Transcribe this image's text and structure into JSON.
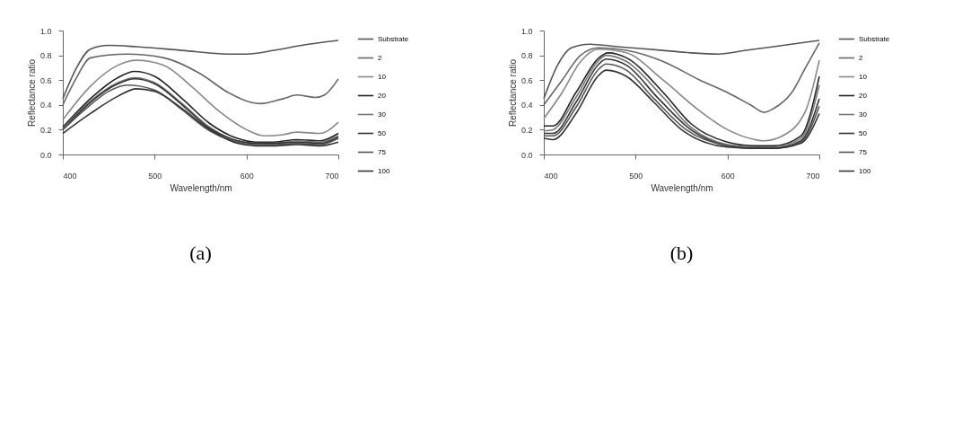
{
  "chart_data": [
    {
      "type": "line",
      "title": "(a)",
      "xlabel": "Wavelength/nm",
      "ylabel": "Reflectance ratio",
      "xlim": [
        400,
        700
      ],
      "ylim": [
        0,
        1
      ],
      "xticks": [
        400,
        500,
        600,
        700
      ],
      "yticks": [
        {
          "value": 0,
          "label": "0.0"
        },
        {
          "value": 0.2,
          "label": "0.2"
        },
        {
          "value": 0.4,
          "label": "0.4"
        },
        {
          "value": 0.6,
          "label": "0.6"
        },
        {
          "value": 0.8,
          "label": "0.8"
        },
        {
          "value": 1,
          "label": "1.0"
        }
      ],
      "legend": "right",
      "grid": false,
      "series": [
        {
          "name": "Substrate",
          "color": "#555555",
          "x": [
            400,
            415,
            430,
            450,
            480,
            530,
            580,
            600,
            630,
            660,
            700
          ],
          "values": [
            0.45,
            0.7,
            0.85,
            0.88,
            0.87,
            0.84,
            0.81,
            0.81,
            0.84,
            0.88,
            0.92
          ]
        },
        {
          "name": "2",
          "color": "#666666",
          "x": [
            400,
            415,
            430,
            470,
            510,
            550,
            580,
            605,
            615,
            640,
            655,
            675,
            685,
            700
          ],
          "values": [
            0.4,
            0.62,
            0.78,
            0.81,
            0.78,
            0.65,
            0.5,
            0.42,
            0.41,
            0.45,
            0.48,
            0.46,
            0.48,
            0.61
          ]
        },
        {
          "name": "10",
          "color": "#888888",
          "x": [
            400,
            430,
            460,
            480,
            510,
            540,
            570,
            600,
            620,
            640,
            655,
            680,
            700
          ],
          "values": [
            0.28,
            0.55,
            0.72,
            0.76,
            0.72,
            0.55,
            0.35,
            0.2,
            0.15,
            0.16,
            0.18,
            0.17,
            0.26
          ]
        },
        {
          "name": "20",
          "color": "#222222",
          "x": [
            400,
            430,
            460,
            478,
            500,
            530,
            560,
            590,
            610,
            630,
            655,
            680,
            700
          ],
          "values": [
            0.22,
            0.45,
            0.62,
            0.67,
            0.63,
            0.45,
            0.25,
            0.13,
            0.1,
            0.1,
            0.12,
            0.11,
            0.17
          ]
        },
        {
          "name": "30",
          "color": "#777777",
          "x": [
            400,
            430,
            460,
            478,
            500,
            530,
            560,
            590,
            610,
            630,
            655,
            680,
            700
          ],
          "values": [
            0.21,
            0.43,
            0.58,
            0.62,
            0.58,
            0.41,
            0.22,
            0.11,
            0.09,
            0.09,
            0.11,
            0.1,
            0.15
          ]
        },
        {
          "name": "50",
          "color": "#333333",
          "x": [
            400,
            430,
            460,
            478,
            500,
            530,
            560,
            590,
            610,
            630,
            655,
            680,
            700
          ],
          "values": [
            0.2,
            0.42,
            0.57,
            0.61,
            0.57,
            0.4,
            0.21,
            0.11,
            0.09,
            0.09,
            0.1,
            0.09,
            0.14
          ]
        },
        {
          "name": "75",
          "color": "#555555",
          "x": [
            400,
            430,
            450,
            470,
            500,
            530,
            560,
            590,
            610,
            630,
            655,
            680,
            700
          ],
          "values": [
            0.2,
            0.4,
            0.51,
            0.56,
            0.52,
            0.36,
            0.19,
            0.1,
            0.08,
            0.08,
            0.09,
            0.08,
            0.13
          ]
        },
        {
          "name": "100",
          "color": "#333333",
          "x": [
            400,
            430,
            460,
            480,
            500,
            530,
            560,
            590,
            610,
            630,
            655,
            680,
            700
          ],
          "values": [
            0.17,
            0.33,
            0.47,
            0.53,
            0.51,
            0.37,
            0.2,
            0.09,
            0.07,
            0.07,
            0.08,
            0.07,
            0.1
          ]
        }
      ]
    },
    {
      "type": "line",
      "title": "(b)",
      "xlabel": "Wavelength/nm",
      "ylabel": "Reflectance ratio",
      "xlim": [
        400,
        700
      ],
      "ylim": [
        0,
        1
      ],
      "xticks": [
        400,
        500,
        600,
        700
      ],
      "yticks": [
        {
          "value": 0,
          "label": "0.0"
        },
        {
          "value": 0.2,
          "label": "0.2"
        },
        {
          "value": 0.4,
          "label": "0.4"
        },
        {
          "value": 0.6,
          "label": "0.6"
        },
        {
          "value": 0.8,
          "label": "0.8"
        },
        {
          "value": 1,
          "label": "1.0"
        }
      ],
      "legend": "right",
      "grid": false,
      "series": [
        {
          "name": "Substrate",
          "color": "#555555",
          "x": [
            400,
            415,
            430,
            450,
            480,
            530,
            560,
            590,
            620,
            650,
            680,
            700
          ],
          "values": [
            0.45,
            0.72,
            0.86,
            0.89,
            0.87,
            0.84,
            0.82,
            0.81,
            0.84,
            0.87,
            0.9,
            0.92
          ]
        },
        {
          "name": "2",
          "color": "#666666",
          "x": [
            400,
            420,
            440,
            460,
            490,
            530,
            570,
            600,
            625,
            640,
            650,
            670,
            685,
            700
          ],
          "values": [
            0.4,
            0.6,
            0.8,
            0.86,
            0.84,
            0.75,
            0.6,
            0.5,
            0.4,
            0.34,
            0.37,
            0.5,
            0.7,
            0.9
          ]
        },
        {
          "name": "10",
          "color": "#888888",
          "x": [
            400,
            420,
            440,
            460,
            490,
            530,
            570,
            600,
            630,
            640,
            660,
            685,
            700
          ],
          "values": [
            0.29,
            0.5,
            0.75,
            0.85,
            0.82,
            0.6,
            0.35,
            0.2,
            0.12,
            0.11,
            0.15,
            0.35,
            0.76
          ]
        },
        {
          "name": "20",
          "color": "#222222",
          "x": [
            400,
            410,
            435,
            460,
            470,
            490,
            530,
            560,
            600,
            630,
            650,
            680,
            700
          ],
          "values": [
            0.23,
            0.23,
            0.5,
            0.78,
            0.82,
            0.78,
            0.5,
            0.25,
            0.1,
            0.07,
            0.07,
            0.15,
            0.63
          ]
        },
        {
          "name": "30",
          "color": "#777777",
          "x": [
            400,
            410,
            435,
            460,
            468,
            490,
            530,
            560,
            600,
            630,
            650,
            680,
            700
          ],
          "values": [
            0.19,
            0.2,
            0.46,
            0.76,
            0.8,
            0.75,
            0.46,
            0.22,
            0.08,
            0.06,
            0.06,
            0.13,
            0.56
          ]
        },
        {
          "name": "50",
          "color": "#333333",
          "x": [
            400,
            410,
            435,
            460,
            468,
            490,
            525,
            560,
            600,
            630,
            650,
            680,
            700
          ],
          "values": [
            0.17,
            0.17,
            0.42,
            0.73,
            0.77,
            0.72,
            0.45,
            0.2,
            0.07,
            0.05,
            0.05,
            0.11,
            0.45
          ]
        },
        {
          "name": "75",
          "color": "#555555",
          "x": [
            400,
            410,
            435,
            460,
            468,
            490,
            520,
            555,
            600,
            630,
            650,
            680,
            700
          ],
          "values": [
            0.15,
            0.15,
            0.38,
            0.69,
            0.73,
            0.68,
            0.45,
            0.2,
            0.07,
            0.05,
            0.05,
            0.1,
            0.39
          ]
        },
        {
          "name": "100",
          "color": "#333333",
          "x": [
            400,
            410,
            435,
            460,
            468,
            490,
            520,
            550,
            600,
            630,
            650,
            680,
            700
          ],
          "values": [
            0.13,
            0.12,
            0.33,
            0.64,
            0.68,
            0.63,
            0.42,
            0.2,
            0.06,
            0.05,
            0.05,
            0.09,
            0.33
          ]
        }
      ]
    }
  ]
}
